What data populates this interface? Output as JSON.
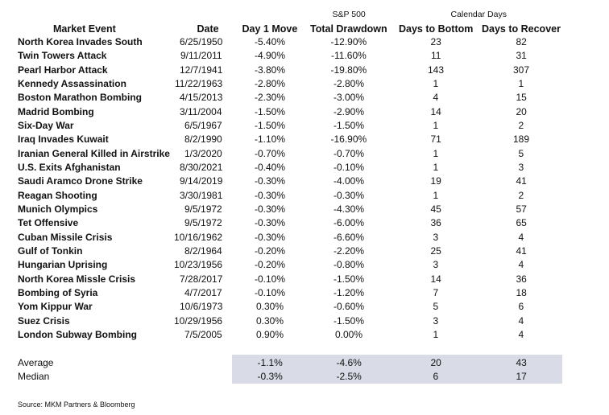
{
  "table": {
    "super_headers": [
      "S&P 500",
      "Calendar Days"
    ],
    "columns": [
      "Market Event",
      "Date",
      "Day 1 Move",
      "Total Drawdown",
      "Days to Bottom",
      "Days to Recover"
    ],
    "rows": [
      [
        "North Korea Invades South",
        "6/25/1950",
        "-5.40%",
        "-12.90%",
        "23",
        "82"
      ],
      [
        "Twin Towers Attack",
        "9/11/2011",
        "-4.90%",
        "-11.60%",
        "11",
        "31"
      ],
      [
        "Pearl Harbor Attack",
        "12/7/1941",
        "-3.80%",
        "-19.80%",
        "143",
        "307"
      ],
      [
        "Kennedy Assassination",
        "11/22/1963",
        "-2.80%",
        "-2.80%",
        "1",
        "1"
      ],
      [
        "Boston Marathon Bombing",
        "4/15/2013",
        "-2.30%",
        "-3.00%",
        "4",
        "15"
      ],
      [
        "Madrid Bombing",
        "3/11/2004",
        "-1.50%",
        "-2.90%",
        "14",
        "20"
      ],
      [
        "Six-Day War",
        "6/5/1967",
        "-1.50%",
        "-1.50%",
        "1",
        "2"
      ],
      [
        "Iraq Invades Kuwait",
        "8/2/1990",
        "-1.10%",
        "-16.90%",
        "71",
        "189"
      ],
      [
        "Iranian General Killed in Airstrike",
        "1/3/2020",
        "-0.70%",
        "-0.70%",
        "1",
        "5"
      ],
      [
        "U.S. Exits Afghanistan",
        "8/30/2021",
        "-0.40%",
        "-0.10%",
        "1",
        "3"
      ],
      [
        "Saudi Aramco Drone Strike",
        "9/14/2019",
        "-0.30%",
        "-4.00%",
        "19",
        "41"
      ],
      [
        "Reagan Shooting",
        "3/30/1981",
        "-0.30%",
        "-0.30%",
        "1",
        "2"
      ],
      [
        "Munich Olympics",
        "9/5/1972",
        "-0.30%",
        "-4.30%",
        "45",
        "57"
      ],
      [
        "Tet Offensive",
        "9/5/1972",
        "-0.30%",
        "-6.00%",
        "36",
        "65"
      ],
      [
        "Cuban Missile Crisis",
        "10/16/1962",
        "-0.30%",
        "-6.60%",
        "3",
        "4"
      ],
      [
        "Gulf of Tonkin",
        "8/2/1964",
        "-0.20%",
        "-2.20%",
        "25",
        "41"
      ],
      [
        "Hungarian Uprising",
        "10/23/1956",
        "-0.20%",
        "-0.80%",
        "3",
        "4"
      ],
      [
        "North Korea Missle Crisis",
        "7/28/2017",
        "-0.10%",
        "-1.50%",
        "14",
        "36"
      ],
      [
        "Bombing of Syria",
        "4/7/2017",
        "-0.10%",
        "-1.20%",
        "7",
        "18"
      ],
      [
        "Yom Kippur War",
        "10/6/1973",
        "0.30%",
        "-0.60%",
        "5",
        "6"
      ],
      [
        "Suez Crisis",
        "10/29/1956",
        "0.30%",
        "-1.50%",
        "3",
        "4"
      ],
      [
        "London Subway Bombing",
        "7/5/2005",
        "0.90%",
        "0.00%",
        "1",
        "4"
      ]
    ],
    "summary": [
      [
        "Average",
        "-1.1%",
        "-4.6%",
        "20",
        "43"
      ],
      [
        "Median",
        "-0.3%",
        "-2.5%",
        "6",
        "17"
      ]
    ],
    "source": "Source: MKM Partners & Bloomberg"
  }
}
